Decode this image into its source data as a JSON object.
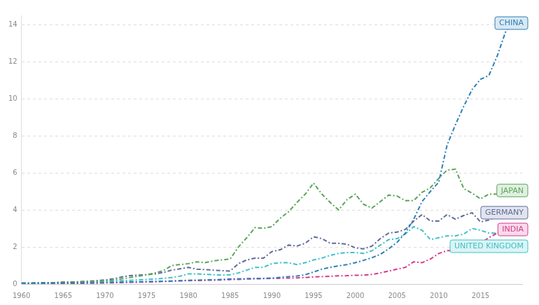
{
  "chart_data": {
    "type": "line",
    "x": [
      1960,
      1961,
      1962,
      1963,
      1964,
      1965,
      1966,
      1967,
      1968,
      1969,
      1970,
      1971,
      1972,
      1973,
      1974,
      1975,
      1976,
      1977,
      1978,
      1979,
      1980,
      1981,
      1982,
      1983,
      1984,
      1985,
      1986,
      1987,
      1988,
      1989,
      1990,
      1991,
      1992,
      1993,
      1994,
      1995,
      1996,
      1997,
      1998,
      1999,
      2000,
      2001,
      2002,
      2003,
      2004,
      2005,
      2006,
      2007,
      2008,
      2009,
      2010,
      2011,
      2012,
      2013,
      2014,
      2015,
      2016,
      2017,
      2018,
      2019
    ],
    "series": [
      {
        "name": "CHINA",
        "color": "#2e7fb8",
        "values": [
          0.05,
          0.05,
          0.05,
          0.05,
          0.05,
          0.06,
          0.06,
          0.06,
          0.06,
          0.07,
          0.08,
          0.09,
          0.1,
          0.11,
          0.12,
          0.13,
          0.14,
          0.15,
          0.16,
          0.18,
          0.2,
          0.21,
          0.22,
          0.23,
          0.25,
          0.27,
          0.28,
          0.29,
          0.3,
          0.3,
          0.32,
          0.36,
          0.4,
          0.43,
          0.5,
          0.65,
          0.8,
          0.9,
          0.98,
          1.05,
          1.15,
          1.28,
          1.42,
          1.6,
          1.9,
          2.25,
          2.75,
          3.5,
          4.45,
          5.0,
          5.5,
          7.5,
          8.6,
          9.6,
          10.5,
          11.05,
          11.25,
          12.3,
          13.6,
          14.3
        ]
      },
      {
        "name": "JAPAN",
        "color": "#5aa55a",
        "values": [
          0.05,
          0.05,
          0.06,
          0.07,
          0.08,
          0.09,
          0.1,
          0.11,
          0.13,
          0.15,
          0.18,
          0.22,
          0.28,
          0.35,
          0.42,
          0.5,
          0.6,
          0.72,
          1.0,
          1.05,
          1.1,
          1.2,
          1.15,
          1.25,
          1.3,
          1.35,
          2.0,
          2.5,
          3.05,
          3.0,
          3.1,
          3.55,
          3.9,
          4.4,
          4.85,
          5.45,
          4.85,
          4.4,
          4.0,
          4.55,
          4.85,
          4.3,
          4.1,
          4.45,
          4.8,
          4.75,
          4.5,
          4.5,
          4.95,
          5.2,
          5.7,
          6.15,
          6.2,
          5.15,
          4.9,
          4.6,
          4.85,
          4.85,
          4.95,
          5.05
        ]
      },
      {
        "name": "GERMANY",
        "color": "#5e6b9a",
        "values": [
          0.05,
          0.05,
          0.06,
          0.07,
          0.08,
          0.1,
          0.11,
          0.13,
          0.15,
          0.18,
          0.22,
          0.28,
          0.38,
          0.45,
          0.48,
          0.5,
          0.55,
          0.62,
          0.75,
          0.82,
          0.9,
          0.8,
          0.78,
          0.75,
          0.72,
          0.7,
          1.1,
          1.3,
          1.4,
          1.4,
          1.75,
          1.85,
          2.1,
          2.05,
          2.2,
          2.55,
          2.45,
          2.2,
          2.2,
          2.15,
          1.95,
          1.9,
          2.05,
          2.45,
          2.75,
          2.8,
          2.95,
          3.4,
          3.75,
          3.4,
          3.4,
          3.75,
          3.5,
          3.7,
          3.85,
          3.35,
          3.45,
          3.65,
          3.95,
          3.85
        ]
      },
      {
        "name": "INDIA",
        "color": "#d6398f",
        "values": [
          0.02,
          0.02,
          0.02,
          0.03,
          0.03,
          0.03,
          0.04,
          0.04,
          0.05,
          0.05,
          0.06,
          0.07,
          0.08,
          0.09,
          0.1,
          0.11,
          0.12,
          0.14,
          0.15,
          0.17,
          0.18,
          0.19,
          0.2,
          0.21,
          0.22,
          0.24,
          0.25,
          0.27,
          0.28,
          0.29,
          0.3,
          0.31,
          0.32,
          0.33,
          0.35,
          0.38,
          0.4,
          0.42,
          0.44,
          0.45,
          0.47,
          0.48,
          0.52,
          0.6,
          0.7,
          0.8,
          0.9,
          1.2,
          1.15,
          1.35,
          1.65,
          1.8,
          1.8,
          1.85,
          2.05,
          2.2,
          2.5,
          2.75,
          2.95,
          3.0
        ]
      },
      {
        "name": "UNITED KINGDOM",
        "color": "#3fc1c9",
        "values": [
          0.04,
          0.04,
          0.05,
          0.05,
          0.06,
          0.07,
          0.08,
          0.09,
          0.1,
          0.12,
          0.14,
          0.16,
          0.18,
          0.2,
          0.22,
          0.25,
          0.27,
          0.3,
          0.35,
          0.42,
          0.55,
          0.55,
          0.52,
          0.5,
          0.48,
          0.5,
          0.6,
          0.75,
          0.9,
          0.9,
          1.1,
          1.15,
          1.15,
          1.05,
          1.15,
          1.3,
          1.4,
          1.55,
          1.65,
          1.7,
          1.7,
          1.65,
          1.8,
          2.1,
          2.4,
          2.45,
          2.7,
          3.1,
          2.9,
          2.4,
          2.5,
          2.6,
          2.6,
          2.7,
          3.0,
          2.9,
          2.75,
          2.75,
          2.85,
          2.8
        ]
      }
    ],
    "xlim": [
      1960,
      2020
    ],
    "xticks": [
      1960,
      1965,
      1970,
      1975,
      1980,
      1985,
      1990,
      1995,
      2000,
      2005,
      2010,
      2015
    ],
    "ylim": [
      0,
      14.5
    ],
    "yticks": [
      0,
      2,
      4,
      6,
      8,
      10,
      12,
      14
    ],
    "grid": true,
    "line_style": "dashdot"
  }
}
